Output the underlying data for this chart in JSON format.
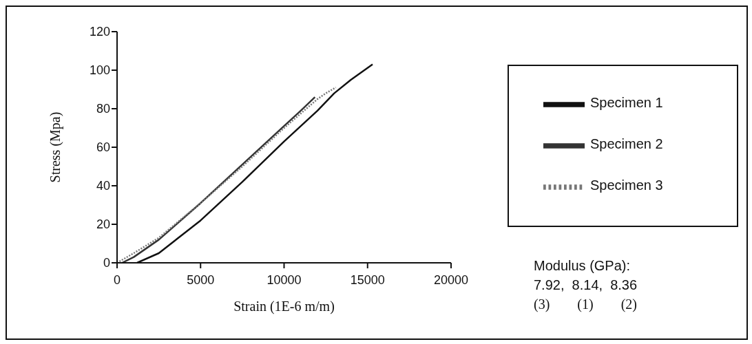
{
  "chart_data": {
    "type": "line",
    "xlabel": "Strain (1E-6 m/m)",
    "ylabel": "Stress (Mpa)",
    "xlim": [
      0,
      20000
    ],
    "xticks": [
      0,
      5000,
      10000,
      15000,
      20000
    ],
    "ylim": [
      0,
      120
    ],
    "yticks": [
      0,
      20,
      40,
      60,
      80,
      100,
      120
    ],
    "grid": false,
    "legend": "right",
    "marker": "none",
    "series": [
      {
        "name": "Specimen 1",
        "color": "#111111",
        "line_style": "solid",
        "x": [
          1200,
          2500,
          5000,
          7500,
          10000,
          12000,
          13000,
          14000,
          15300
        ],
        "values": [
          0,
          5,
          22,
          42,
          63,
          79,
          88,
          95,
          103
        ]
      },
      {
        "name": "Specimen 2",
        "color": "#333333",
        "line_style": "solid",
        "x": [
          300,
          1000,
          2500,
          5000,
          7500,
          10000,
          11000,
          11850
        ],
        "values": [
          0,
          3,
          12,
          31,
          51,
          71,
          79,
          86
        ]
      },
      {
        "name": "Specimen 3",
        "color": "#777777",
        "line_style": "dotted",
        "x": [
          0,
          1000,
          2500,
          5000,
          7500,
          10000,
          12000,
          12500,
          13100
        ],
        "values": [
          0,
          5,
          13,
          31,
          50,
          70,
          85,
          88,
          91
        ]
      }
    ],
    "annotations": [
      "Modulus (GPa):",
      "7.92,  8.14,  8.36",
      "(3)        (1)        (2)"
    ]
  }
}
